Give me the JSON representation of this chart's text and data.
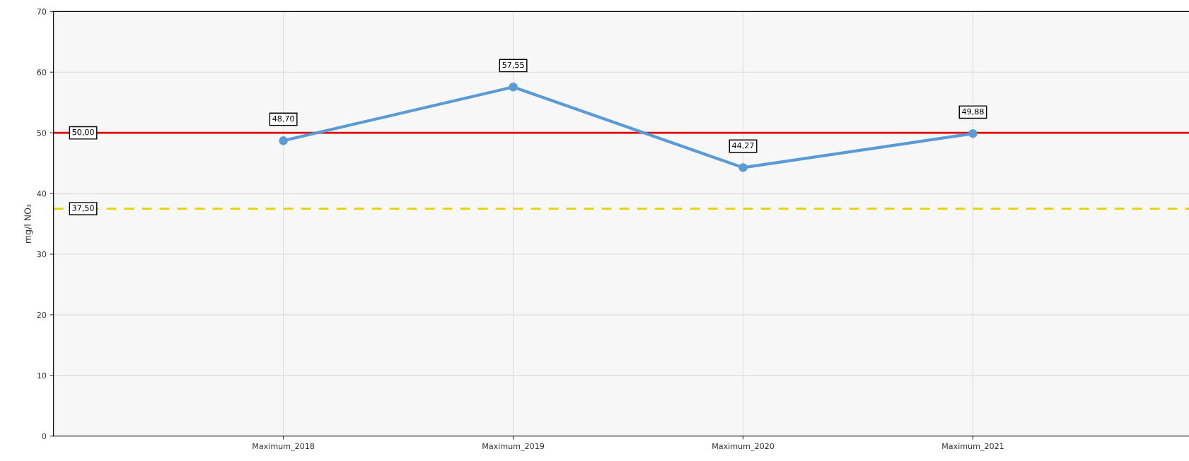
{
  "chart_data": {
    "type": "line",
    "ylabel": "mg/l NO₃",
    "categories": [
      "Maximum_2018",
      "Maximum_2019",
      "Maximum_2020",
      "Maximum_2021"
    ],
    "series": [
      {
        "color": "#5b9bd5",
        "values": [
          48.7,
          57.55,
          44.27,
          49.88
        ],
        "value_labels": [
          "48,70",
          "57,55",
          "44,27",
          "49,88"
        ]
      }
    ],
    "ylim": [
      0,
      70
    ],
    "yticks": [
      0,
      10,
      20,
      30,
      40,
      50,
      60,
      70
    ],
    "grid": true,
    "marker": "circle",
    "line_style": "solid",
    "ref_lines": [
      {
        "axis": "y",
        "value": 50,
        "label": "50,00",
        "color": "#e00000",
        "line_style": "solid"
      },
      {
        "axis": "y",
        "value": 37.5,
        "label": "37,50",
        "color": "#e6d200",
        "line_style": "dashed"
      }
    ]
  }
}
